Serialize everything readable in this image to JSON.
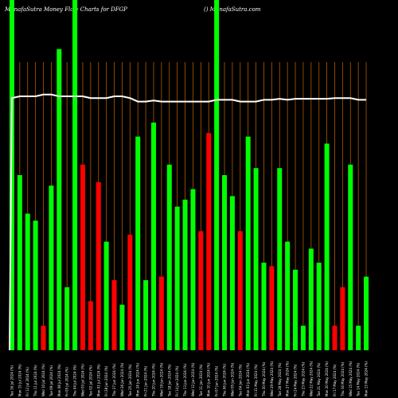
{
  "header": {
    "title_left": "MunafaSutra  Money Flow  Charts for DFGP",
    "title_right": "() MunafaSutra.com"
  },
  "chart_data": {
    "type": "bar",
    "title": "MunafaSutra  Money Flow  Charts for DFGP",
    "xlabel": "",
    "ylabel": "",
    "ylim": [
      0,
      100
    ],
    "grid": "vertical",
    "categories": [
      "Tue 16 Jul 2024 (%)",
      "Mon 15 Jul 2024 (%)",
      "Fri 12 Jul 2024 (%)",
      "Thu 11 Jul 2024 (%)",
      "Wed 10 Jul 2024 (%)",
      "Tue 09 Jul 2024 (%)",
      "Mon 08 Jul 2024 (%)",
      "Fri 05 Jul 2024 (%)",
      "Thu 04 Jul 2024 (%)",
      "Wed 03 Jul 2024 (%)",
      "Tue 02 Jul 2024 (%)",
      "Mon 01 Jul 2024 (%)",
      "Fri 28 Jun 2024 (%)",
      "Thu 27 Jun 2024 (%)",
      "Wed 26 Jun 2024 (%)",
      "Tue 25 Jun 2024 (%)",
      "Mon 24 Jun 2024 (%)",
      "Fri 21 Jun 2024 (%)",
      "Thu 20 Jun 2024 (%)",
      "Wed 19 Jun 2024 (%)",
      "Tue 18 Jun 2024 (%)",
      "Fri 14 Jun 2024 (%)",
      "Thu 13 Jun 2024 (%)",
      "Wed 12 Jun 2024 (%)",
      "Tue 11 Jun 2024 (%)",
      "Mon 10 Jun 2024 (%)",
      "Fri 07 Jun 2024 (%)",
      "Thu 06 Jun 2024 (%)",
      "Wed 05 Jun 2024 (%)",
      "Tue 04 Jun 2024 (%)",
      "Mon 03 Jun 2024 (%)",
      "Fri 31 May 2024 (%)",
      "Thu 30 May 2024 (%)",
      "Wed 29 May 2024 (%)",
      "Tue 28 May 2024 (%)",
      "Mon 27 May 2024 (%)",
      "Fri 24 May 2024 (%)",
      "Thu 23 May 2024 (%)",
      "Wed 22 May 2024 (%)",
      "Tue 21 May 2024 (%)",
      "Mon 20 May 2024 (%)",
      "Fri 17 May 2024 (%)",
      "Thu 16 May 2024 (%)",
      "Wed 15 May 2024 (%)",
      "Tue 14 May 2024 (%)",
      "Mon 13 May 2024 (%)"
    ],
    "series": [
      {
        "values": [
          100,
          50,
          39,
          37,
          7,
          47,
          86,
          18,
          100,
          53,
          14,
          48,
          31,
          20,
          13,
          33,
          61,
          20,
          65,
          21,
          53,
          41,
          43,
          46,
          34,
          62,
          100,
          50,
          44,
          34,
          61,
          52,
          25,
          24,
          52,
          31,
          23,
          7,
          29,
          25,
          59,
          7,
          18,
          53,
          7,
          21
        ],
        "colors": [
          "green",
          "green",
          "green",
          "green",
          "red",
          "green",
          "green",
          "green",
          "green",
          "red",
          "red",
          "red",
          "green",
          "red",
          "green",
          "red",
          "green",
          "green",
          "green",
          "red",
          "green",
          "green",
          "green",
          "green",
          "red",
          "red",
          "green",
          "green",
          "green",
          "red",
          "green",
          "green",
          "green",
          "red",
          "green",
          "green",
          "green",
          "green",
          "green",
          "green",
          "green",
          "red",
          "red",
          "green",
          "green",
          "green"
        ]
      }
    ],
    "line": [
      72,
      72.5,
      72.5,
      72.5,
      73,
      73,
      72.5,
      72.5,
      72.5,
      72.5,
      72,
      72,
      72,
      72.5,
      72.5,
      72,
      71,
      71,
      71.3,
      71,
      71,
      71,
      71,
      71,
      71,
      71,
      71.5,
      71.5,
      71.5,
      71,
      71,
      71,
      71.5,
      71.5,
      71.8,
      71.5,
      71.8,
      71.8,
      71.8,
      71.8,
      71.8,
      72,
      72,
      72,
      71.5,
      71.5
    ],
    "colors": {
      "green": "#00ff00",
      "red": "#ff0000",
      "grid": "#b35a00",
      "line": "#ffffff",
      "background": "#000000"
    }
  }
}
